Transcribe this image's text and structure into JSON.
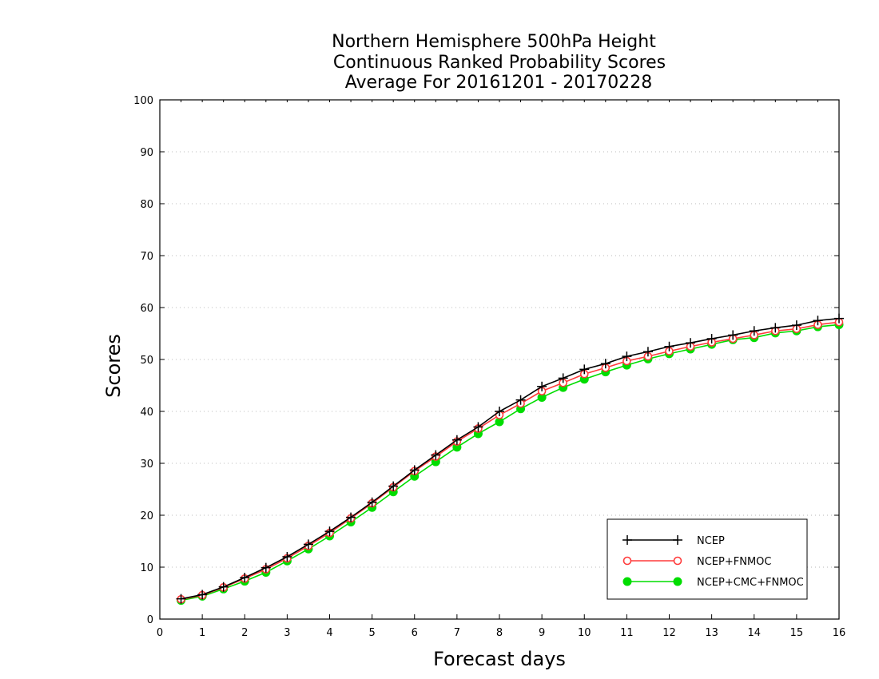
{
  "chart_data": {
    "type": "line",
    "title": [
      "Northern Hemisphere 500hPa Height",
      "Continuous Ranked Probability Scores",
      "Average For 20161201 - 20170228"
    ],
    "xlabel": "Forecast days",
    "ylabel": "Scores",
    "xlim": [
      0,
      16
    ],
    "ylim": [
      0,
      100
    ],
    "xticks": [
      0,
      1,
      2,
      3,
      4,
      5,
      6,
      7,
      8,
      9,
      10,
      11,
      12,
      13,
      14,
      15,
      16
    ],
    "yticks": [
      0,
      10,
      20,
      30,
      40,
      50,
      60,
      70,
      80,
      90,
      100
    ],
    "grid": "horizontal-dotted",
    "legend_position": "bottom-right",
    "x": [
      0.5,
      1,
      1.5,
      2,
      2.5,
      3,
      3.5,
      4,
      4.5,
      5,
      5.5,
      6,
      6.5,
      7,
      7.5,
      8,
      8.5,
      9,
      9.5,
      10,
      10.5,
      11,
      11.5,
      12,
      12.5,
      13,
      13.5,
      14,
      14.5,
      15,
      15.5,
      16
    ],
    "series": [
      {
        "name": "NCEP",
        "color": "#000000",
        "marker": "plus",
        "values": [
          3.9,
          4.7,
          6.2,
          8.0,
          9.9,
          12.0,
          14.4,
          16.9,
          19.6,
          22.5,
          25.6,
          28.7,
          31.6,
          34.5,
          37.0,
          40.0,
          42.2,
          44.8,
          46.4,
          48.1,
          49.2,
          50.6,
          51.5,
          52.5,
          53.2,
          54.0,
          54.7,
          55.5,
          56.1,
          56.6,
          57.5,
          57.9
        ]
      },
      {
        "name": "NCEP+FNMOC",
        "color": "#ff3b3b",
        "marker": "open-circle",
        "values": [
          3.8,
          4.6,
          6.1,
          7.8,
          9.6,
          11.7,
          14.1,
          16.6,
          19.4,
          22.3,
          25.4,
          28.5,
          31.3,
          34.2,
          36.7,
          39.3,
          41.5,
          43.9,
          45.5,
          47.2,
          48.4,
          49.7,
          50.6,
          51.6,
          52.5,
          53.3,
          54.0,
          54.7,
          55.5,
          55.9,
          56.7,
          57.2
        ]
      },
      {
        "name": "NCEP+CMC+FNMOC",
        "color": "#00dd00",
        "marker": "filled-circle",
        "values": [
          3.6,
          4.4,
          5.8,
          7.3,
          9.0,
          11.2,
          13.5,
          16.0,
          18.7,
          21.5,
          24.5,
          27.5,
          30.3,
          33.1,
          35.7,
          38.0,
          40.5,
          42.7,
          44.6,
          46.2,
          47.6,
          48.9,
          50.1,
          51.1,
          52.0,
          52.9,
          53.8,
          54.2,
          55.1,
          55.5,
          56.3,
          56.7
        ]
      }
    ]
  }
}
